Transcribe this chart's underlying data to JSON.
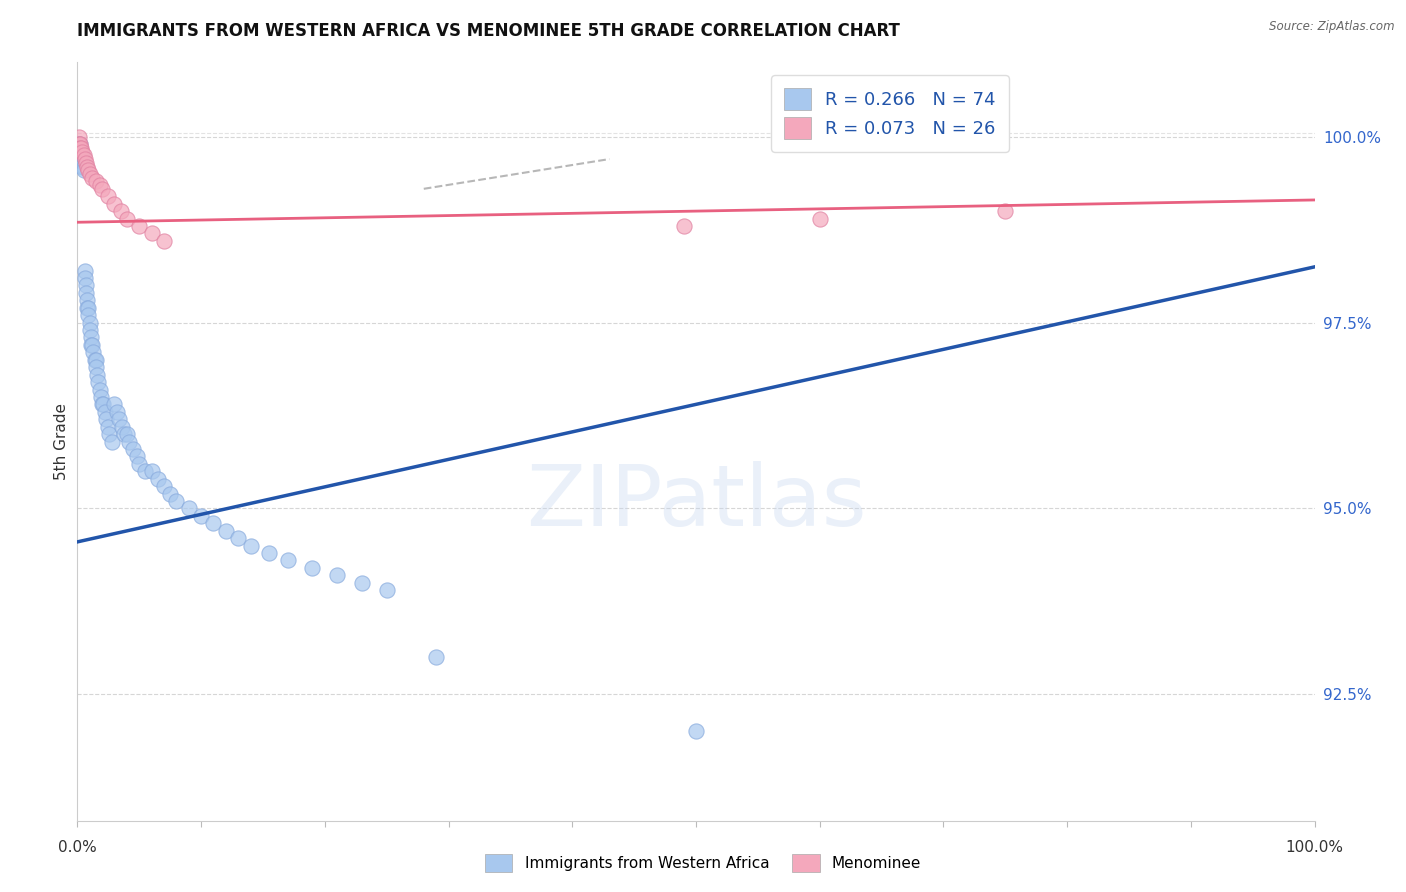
{
  "title": "IMMIGRANTS FROM WESTERN AFRICA VS MENOMINEE 5TH GRADE CORRELATION CHART",
  "source": "Source: ZipAtlas.com",
  "ylabel": "5th Grade",
  "y_tick_labels": [
    "92.5%",
    "95.0%",
    "97.5%",
    "100.0%"
  ],
  "y_tick_values": [
    0.925,
    0.95,
    0.975,
    1.0
  ],
  "x_lim": [
    0.0,
    1.0
  ],
  "y_lim": [
    0.908,
    1.01
  ],
  "legend_r_blue": "R = 0.266",
  "legend_n_blue": "N = 74",
  "legend_r_pink": "R = 0.073",
  "legend_n_pink": "N = 26",
  "blue_color": "#A8C8EE",
  "pink_color": "#F4A8BC",
  "trend_blue_color": "#2255AA",
  "trend_pink_color": "#E86080",
  "legend_color": "#2255AA",
  "blue_trend_start_y": 0.9455,
  "blue_trend_end_y": 0.9825,
  "pink_trend_start_y": 0.9885,
  "pink_trend_end_y": 0.9915,
  "dashed_trend_x": [
    0.28,
    0.43
  ],
  "dashed_trend_y": [
    0.993,
    0.997
  ],
  "watermark_text": "ZIPatlas",
  "background_color": "#ffffff",
  "grid_color": "#bbbbbb",
  "blue_scatter_x": [
    0.001,
    0.001,
    0.001,
    0.001,
    0.001,
    0.002,
    0.002,
    0.002,
    0.003,
    0.003,
    0.003,
    0.004,
    0.004,
    0.005,
    0.005,
    0.005,
    0.006,
    0.006,
    0.007,
    0.007,
    0.008,
    0.008,
    0.009,
    0.009,
    0.01,
    0.01,
    0.011,
    0.011,
    0.012,
    0.013,
    0.014,
    0.015,
    0.015,
    0.016,
    0.017,
    0.018,
    0.019,
    0.02,
    0.021,
    0.022,
    0.023,
    0.025,
    0.026,
    0.028,
    0.03,
    0.032,
    0.034,
    0.036,
    0.038,
    0.04,
    0.042,
    0.045,
    0.048,
    0.05,
    0.055,
    0.06,
    0.065,
    0.07,
    0.075,
    0.08,
    0.09,
    0.1,
    0.11,
    0.12,
    0.13,
    0.14,
    0.155,
    0.17,
    0.19,
    0.21,
    0.23,
    0.25,
    0.29,
    0.5
  ],
  "blue_scatter_y": [
    0.999,
    0.999,
    0.999,
    0.999,
    0.9985,
    0.999,
    0.9985,
    0.998,
    0.998,
    0.9975,
    0.997,
    0.9975,
    0.996,
    0.9965,
    0.996,
    0.9955,
    0.982,
    0.981,
    0.98,
    0.979,
    0.978,
    0.977,
    0.977,
    0.976,
    0.975,
    0.974,
    0.973,
    0.972,
    0.972,
    0.971,
    0.97,
    0.97,
    0.969,
    0.968,
    0.967,
    0.966,
    0.965,
    0.964,
    0.964,
    0.963,
    0.962,
    0.961,
    0.96,
    0.959,
    0.964,
    0.963,
    0.962,
    0.961,
    0.96,
    0.96,
    0.959,
    0.958,
    0.957,
    0.956,
    0.955,
    0.955,
    0.954,
    0.953,
    0.952,
    0.951,
    0.95,
    0.949,
    0.948,
    0.947,
    0.946,
    0.945,
    0.944,
    0.943,
    0.942,
    0.941,
    0.94,
    0.939,
    0.93,
    0.92
  ],
  "pink_scatter_x": [
    0.001,
    0.001,
    0.002,
    0.002,
    0.003,
    0.004,
    0.005,
    0.006,
    0.007,
    0.008,
    0.009,
    0.01,
    0.012,
    0.015,
    0.018,
    0.02,
    0.025,
    0.03,
    0.035,
    0.04,
    0.05,
    0.06,
    0.07,
    0.49,
    0.6,
    0.75
  ],
  "pink_scatter_y": [
    1.0,
    0.999,
    0.999,
    0.9985,
    0.9985,
    0.998,
    0.9975,
    0.997,
    0.9965,
    0.996,
    0.9955,
    0.995,
    0.9945,
    0.994,
    0.9935,
    0.993,
    0.992,
    0.991,
    0.99,
    0.989,
    0.988,
    0.987,
    0.986,
    0.988,
    0.989,
    0.99
  ]
}
